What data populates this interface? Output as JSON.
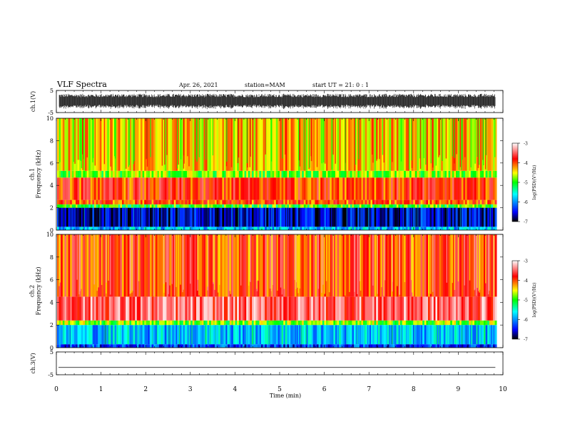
{
  "header": {
    "title": "VLF Spectra",
    "date": "Apr. 26, 2021",
    "station": "station=MAM",
    "start_time": "start  UT  =   21: 0  : 1"
  },
  "chart_data": [
    {
      "type": "line",
      "name": "ch1-waveform",
      "ylabel": "ch.1(V)",
      "ylim": [
        -5,
        5
      ],
      "yticks": [
        "5",
        "-5"
      ],
      "xlim": [
        0,
        10
      ],
      "data_end_min": 9.83,
      "note_amplitude_range": [
        -3.5,
        3.5
      ]
    },
    {
      "type": "heatmap",
      "name": "ch1-spectrogram",
      "ylabel": "ch.1\nFrequency  (kHz)",
      "ylim": [
        0,
        10
      ],
      "yticks": [
        "0",
        "2",
        "4",
        "6",
        "8",
        "10"
      ],
      "xlim": [
        0,
        10
      ],
      "data_end_min": 9.83,
      "bands_khz": [
        {
          "from": 0,
          "to": 0.3,
          "level": -5.8
        },
        {
          "from": 0.3,
          "to": 2.0,
          "level": -6.6
        },
        {
          "from": 2.0,
          "to": 2.3,
          "level": -5.0
        },
        {
          "from": 2.3,
          "to": 2.7,
          "level": -4.0
        },
        {
          "from": 2.7,
          "to": 4.7,
          "level": -3.9
        },
        {
          "from": 4.7,
          "to": 5.3,
          "level": -4.8
        },
        {
          "from": 5.3,
          "to": 10,
          "level": -4.4
        }
      ],
      "colorbar": {
        "label": "log(PSD)(V²/Hz)",
        "range": [
          -7,
          -3
        ],
        "ticks": [
          "-3",
          "-4",
          "-5",
          "-6",
          "-7"
        ]
      }
    },
    {
      "type": "heatmap",
      "name": "ch2-spectrogram",
      "ylabel": "ch.2\nFrequency  (kHz)",
      "ylim": [
        0,
        10
      ],
      "yticks": [
        "0",
        "2",
        "4",
        "6",
        "8",
        "10"
      ],
      "xlim": [
        0,
        10
      ],
      "data_end_min": 9.83,
      "bands_khz": [
        {
          "from": 0,
          "to": 0.3,
          "level": -6.3
        },
        {
          "from": 0.3,
          "to": 2.0,
          "level": -5.8
        },
        {
          "from": 2.0,
          "to": 2.4,
          "level": -4.8
        },
        {
          "from": 2.4,
          "to": 4.5,
          "level": -3.5
        },
        {
          "from": 4.5,
          "to": 10,
          "level": -3.9
        }
      ],
      "colorbar": {
        "label": "log(PSD)(V²/Hz)",
        "range": [
          -7,
          -3
        ],
        "ticks": [
          "-3",
          "-4",
          "-5",
          "-6",
          "-7"
        ]
      }
    },
    {
      "type": "line",
      "name": "ch3-waveform",
      "ylabel": "ch.3(V)",
      "ylim": [
        -5,
        5
      ],
      "yticks": [
        "5",
        "-5"
      ],
      "xlim": [
        0,
        10
      ],
      "data_end_min": 9.83,
      "constant_value": -1.8
    }
  ],
  "xaxis": {
    "label": "Time  (min)",
    "ticks": [
      "0",
      "1",
      "2",
      "3",
      "4",
      "5",
      "6",
      "7",
      "8",
      "9",
      "10"
    ]
  },
  "colors": {
    "scale": [
      "#000000",
      "#0000ff",
      "#00ffff",
      "#00ff00",
      "#ffff00",
      "#ff0000",
      "#ffffff"
    ]
  }
}
